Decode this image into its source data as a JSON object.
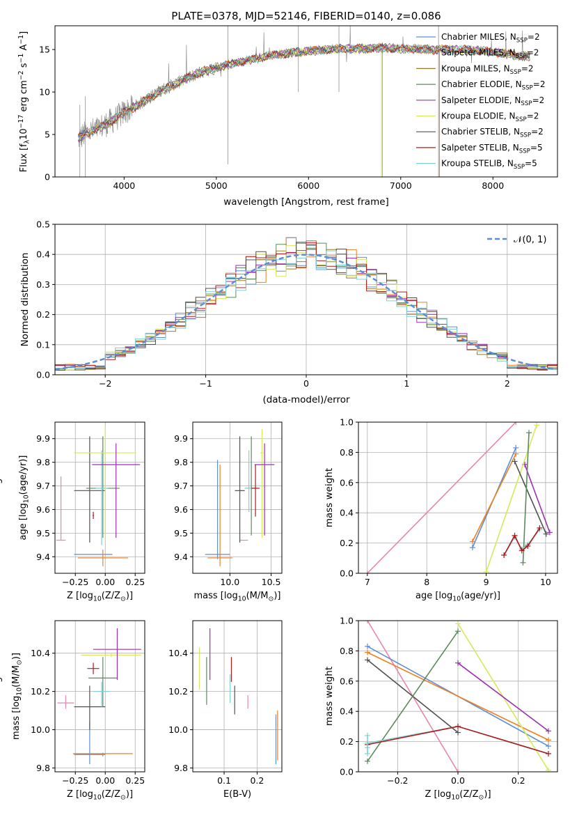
{
  "title": "PLATE=0378, MJD=52146, FIBERID=0140, z=0.086",
  "colors": {
    "chabrier_miles": "#5b8ed6",
    "salpeter_miles": "#f07f1e",
    "kroupa_miles": "#a07a2a",
    "chabrier_elodie": "#5a8a5a",
    "salpeter_elodie": "#9a30b0",
    "kroupa_elodie": "#d8e85a",
    "chabrier_stelib": "#505050",
    "salpeter_stelib": "#b01818",
    "kroupa_stelib": "#80d0d8",
    "pink": "#e884b0",
    "gray_data": "#808080",
    "grid": "#b0b0b0"
  },
  "chart_data": [
    {
      "id": "spectrum",
      "type": "line",
      "xlabel": "wavelength [Angstrom, rest frame]",
      "ylabel": "Flux [f",
      "ylabel_sub": "λ",
      "ylabel_rest": "10",
      "ylabel_exp": "−17",
      "ylabel_units": " erg cm",
      "ylabel_units_exp": "−2",
      "ylabel_units2": " s",
      "ylabel_units2_exp": "−1",
      "ylabel_units3": " A",
      "ylabel_units3_exp": "−1",
      "ylabel_end": "]",
      "xlim": [
        3250,
        8700
      ],
      "ylim": [
        0,
        17.8
      ],
      "xticks": [
        4000,
        5000,
        6000,
        7000,
        8000
      ],
      "yticks": [
        0,
        5,
        10,
        15
      ],
      "data_envelope": {
        "x": [
          3500,
          3600,
          3700,
          3800,
          3900,
          4000,
          4200,
          4400,
          4600,
          4800,
          5000,
          5200,
          5400,
          5600,
          5800,
          6000,
          6200,
          6400,
          6600,
          6800,
          7000,
          7200,
          7400,
          7600,
          7800,
          8000,
          8200,
          8400
        ],
        "y": [
          4.5,
          5.2,
          5.6,
          6.2,
          6.8,
          7.6,
          8.8,
          10.2,
          11.2,
          12.2,
          12.9,
          13.4,
          13.9,
          14.3,
          14.6,
          14.8,
          15.0,
          15.1,
          15.1,
          15.2,
          15.1,
          15.1,
          15.0,
          15.0,
          14.9,
          14.7,
          14.4,
          14.1
        ]
      },
      "legend": [
        {
          "name": "Chabrier MILES, N",
          "sub": "SSP",
          "val": "=2",
          "color": "#5b8ed6"
        },
        {
          "name": "Salpeter MILES, N",
          "sub": "SSP",
          "val": "=2",
          "color": "#f07f1e"
        },
        {
          "name": "Kroupa MILES, N",
          "sub": "SSP",
          "val": "=2",
          "color": "#a07a2a"
        },
        {
          "name": "Chabrier ELODIE, N",
          "sub": "SSP",
          "val": "=2",
          "color": "#5a8a5a"
        },
        {
          "name": "Salpeter ELODIE, N",
          "sub": "SSP",
          "val": "=2",
          "color": "#9a30b0"
        },
        {
          "name": "Kroupa ELODIE, N",
          "sub": "SSP",
          "val": "=2",
          "color": "#d8e85a"
        },
        {
          "name": "Chabrier STELIB, N",
          "sub": "SSP",
          "val": "=2",
          "color": "#505050"
        },
        {
          "name": "Salpeter STELIB, N",
          "sub": "SSP",
          "val": "=5",
          "color": "#b01818"
        },
        {
          "name": "Kroupa STELIB, N",
          "sub": "SSP",
          "val": "=5",
          "color": "#80d0d8"
        }
      ]
    },
    {
      "id": "histogram",
      "type": "line",
      "xlabel": "(data-model)/error",
      "ylabel": "Normed distribution",
      "xlim": [
        -2.5,
        2.5
      ],
      "ylim": [
        0,
        0.5
      ],
      "xticks": [
        -2,
        -1,
        0,
        1,
        2
      ],
      "yticks": [
        0.0,
        0.1,
        0.2,
        0.3,
        0.4,
        0.5
      ],
      "legend": "𝒩(0, 1)",
      "gaussian": {
        "mu": 0,
        "sigma": 1
      }
    },
    {
      "id": "age_vs_Z",
      "type": "scatter",
      "xlabel": "Z [log",
      "xlabel_sub": "10",
      "xlabel_rest": "(Z/Z",
      "xlabel_sub2": "⊙",
      "xlabel_end": ")]",
      "ylabel": "age  [log",
      "ylabel_sub": "10",
      "ylabel_rest": "(age/yr)]",
      "xlim": [
        -0.42,
        0.33
      ],
      "ylim": [
        9.33,
        9.97
      ],
      "xticks": [
        -0.25,
        0.0,
        0.25
      ],
      "xtick_labels": [
        "−0.25",
        "0.00",
        "0.25"
      ],
      "yticks": [
        9.4,
        9.5,
        9.6,
        9.7,
        9.8,
        9.9
      ],
      "points": [
        {
          "color": "#e884b0",
          "x": -0.37,
          "xlo": -0.36,
          "xhi": -0.33,
          "y": 9.47,
          "ylo": 9.47,
          "yhi": 9.74,
          "xerr": 0.04
        },
        {
          "color": "#5b8ed6",
          "x": -0.1,
          "xerr": 0.16,
          "y": 9.41,
          "ylo": 9.41,
          "yhi": 9.41
        },
        {
          "color": "#f07f1e",
          "x": -0.02,
          "xerr": 0.21,
          "y": 9.395,
          "ylo": 9.36,
          "yhi": 9.43
        },
        {
          "color": "#505050",
          "x": -0.13,
          "xerr": 0.13,
          "y": 9.68,
          "ylo": 9.46,
          "yhi": 9.91
        },
        {
          "color": "#5a8a5a",
          "x": -0.02,
          "xerr": 0.14,
          "y": 9.69,
          "ylo": 9.48,
          "yhi": 9.91
        },
        {
          "color": "#80d0d8",
          "x": -0.03,
          "xerr": 0.05,
          "y": 9.69,
          "ylo": 9.45,
          "yhi": 9.85
        },
        {
          "color": "#d8e85a",
          "x": 0.0,
          "xerr": 0.26,
          "y": 9.84,
          "ylo": 9.47,
          "yhi": 9.95
        },
        {
          "color": "#9a30b0",
          "x": 0.09,
          "xerr": 0.2,
          "y": 9.79,
          "ylo": 9.48,
          "yhi": 9.88
        },
        {
          "color": "#b01818",
          "x": -0.1,
          "xerr": 0.005,
          "y": 9.575,
          "ylo": 9.56,
          "yhi": 9.59
        }
      ]
    },
    {
      "id": "age_vs_mass",
      "type": "scatter",
      "xlabel": "mass [log",
      "xlabel_sub": "10",
      "xlabel_rest": "(M/M",
      "xlabel_sub2": "⊙",
      "xlabel_end": ")]",
      "xlim": [
        9.55,
        10.63
      ],
      "ylim": [
        9.33,
        9.97
      ],
      "xticks": [
        10.0,
        10.5
      ],
      "yticks": [
        9.4,
        9.5,
        9.6,
        9.7,
        9.8,
        9.9
      ],
      "points": [
        {
          "color": "#5b8ed6",
          "x": 9.85,
          "xerr": 0.0,
          "y": 9.41,
          "ylo": 9.39,
          "yhi": 9.81
        },
        {
          "color": "#f07f1e",
          "x": 9.88,
          "xerr": 0.0,
          "y": 9.4,
          "ylo": 9.36,
          "yhi": 9.79
        },
        {
          "color": "#5b8ed6",
          "x": 9.85,
          "xerr": 0.15,
          "y": 9.41,
          "ylo": 9.41,
          "yhi": 9.41
        },
        {
          "color": "#f07f1e",
          "x": 9.88,
          "xerr": 0.15,
          "y": 9.395,
          "ylo": 9.395,
          "yhi": 9.395
        },
        {
          "color": "#e884b0",
          "x": 10.17,
          "xerr": 0.05,
          "y": 9.47,
          "ylo": 9.47,
          "yhi": 9.47
        },
        {
          "color": "#505050",
          "x": 10.12,
          "xerr": 0.06,
          "y": 9.68,
          "ylo": 9.46,
          "yhi": 9.91
        },
        {
          "color": "#5a8a5a",
          "x": 10.26,
          "xerr": 0.08,
          "y": 9.69,
          "ylo": 9.49,
          "yhi": 9.91
        },
        {
          "color": "#80d0d8",
          "x": 10.23,
          "xerr": 0.05,
          "y": 9.69,
          "ylo": 9.59,
          "yhi": 9.85
        },
        {
          "color": "#d8e85a",
          "x": 10.39,
          "xerr": 0.02,
          "y": 9.84,
          "ylo": 9.48,
          "yhi": 9.94
        },
        {
          "color": "#9a30b0",
          "x": 10.42,
          "xerr": 0.12,
          "y": 9.79,
          "ylo": 9.49,
          "yhi": 9.88
        },
        {
          "color": "#b01818",
          "x": 10.31,
          "xerr": 0.05,
          "y": 9.69,
          "ylo": 9.57,
          "yhi": 9.79
        }
      ]
    },
    {
      "id": "massweight_vs_age",
      "type": "line",
      "xlabel": "age  [log",
      "xlabel_sub": "10",
      "xlabel_rest": "(age/yr)]",
      "ylabel": "mass weight",
      "xlim": [
        6.85,
        10.2
      ],
      "ylim": [
        0,
        1
      ],
      "xticks": [
        7,
        8,
        9,
        10
      ],
      "yticks": [
        0.0,
        0.2,
        0.4,
        0.6,
        0.8,
        1.0
      ],
      "series": [
        {
          "color": "#e884b0",
          "x": [
            7.0,
            9.5
          ],
          "y": [
            0.0,
            1.0
          ]
        },
        {
          "color": "#5b8ed6",
          "x": [
            8.77,
            9.5
          ],
          "y": [
            0.17,
            0.83
          ]
        },
        {
          "color": "#f07f1e",
          "x": [
            8.77,
            9.5
          ],
          "y": [
            0.21,
            0.79
          ]
        },
        {
          "color": "#9a30b0",
          "x": [
            9.65,
            10.07
          ],
          "y": [
            0.72,
            0.27
          ]
        },
        {
          "color": "#d8e85a",
          "x": [
            9.0,
            9.85
          ],
          "y": [
            0.01,
            0.98
          ]
        },
        {
          "color": "#505050",
          "x": [
            9.48,
            10.01
          ],
          "y": [
            0.74,
            0.26
          ]
        },
        {
          "color": "#5a8a5a",
          "x": [
            9.62,
            9.72
          ],
          "y": [
            0.07,
            0.93
          ]
        },
        {
          "color": "#80d0d8",
          "x": [
            9.3,
            9.48,
            9.6,
            9.7,
            9.9
          ],
          "y": [
            0.12,
            0.24,
            0.16,
            0.19,
            0.29
          ]
        },
        {
          "color": "#b01818",
          "x": [
            9.3,
            9.48,
            9.6,
            9.7,
            9.9
          ],
          "y": [
            0.12,
            0.25,
            0.15,
            0.18,
            0.3
          ]
        }
      ]
    },
    {
      "id": "mass_vs_Z",
      "type": "scatter",
      "xlabel": "Z [log",
      "xlabel_sub": "10",
      "xlabel_rest": "(Z/Z",
      "xlabel_sub2": "⊙",
      "xlabel_end": ")]",
      "ylabel": "mass [log",
      "ylabel_sub": "10",
      "ylabel_rest": "(M/M",
      "ylabel_sub2": "⊙",
      "ylabel_end": ")]",
      "xlim": [
        -0.42,
        0.33
      ],
      "ylim": [
        9.78,
        10.57
      ],
      "xticks": [
        -0.25,
        0.0,
        0.25
      ],
      "xtick_labels": [
        "−0.25",
        "0.00",
        "0.25"
      ],
      "yticks": [
        9.8,
        10.0,
        10.2,
        10.4
      ],
      "points": [
        {
          "color": "#e884b0",
          "x": -0.33,
          "xerr": 0.07,
          "y": 10.14,
          "ylo": 10.11,
          "yhi": 10.18
        },
        {
          "color": "#5b8ed6",
          "x": -0.13,
          "xerr": 0.13,
          "y": 9.87,
          "ylo": 9.82,
          "yhi": 10.04
        },
        {
          "color": "#f07f1e",
          "x": -0.02,
          "xerr": 0.25,
          "y": 9.875,
          "ylo": 9.86,
          "yhi": 9.88
        },
        {
          "color": "#505050",
          "x": -0.13,
          "xerr": 0.13,
          "y": 10.12,
          "ylo": 10.0,
          "yhi": 10.23
        },
        {
          "color": "#5a8a5a",
          "x": -0.02,
          "xerr": 0.12,
          "y": 10.27,
          "ylo": 10.12,
          "yhi": 10.38
        },
        {
          "color": "#80d0d8",
          "x": -0.03,
          "xerr": 0.07,
          "y": 10.2,
          "ylo": 10.12,
          "yhi": 10.25
        },
        {
          "color": "#d8e85a",
          "x": 0.05,
          "xerr": 0.25,
          "y": 10.39,
          "ylo": 10.38,
          "yhi": 10.4
        },
        {
          "color": "#9a30b0",
          "x": 0.1,
          "xerr": 0.2,
          "y": 10.42,
          "ylo": 10.26,
          "yhi": 10.53
        },
        {
          "color": "#b01818",
          "x": -0.1,
          "xerr": 0.05,
          "y": 10.32,
          "ylo": 10.29,
          "yhi": 10.35
        }
      ]
    },
    {
      "id": "mass_vs_ebv",
      "type": "scatter",
      "xlabel": "E(B-V)",
      "xlim": [
        0.005,
        0.275
      ],
      "ylim": [
        9.78,
        10.57
      ],
      "xticks": [
        0.1,
        0.2
      ],
      "yticks": [
        9.8,
        10.0,
        10.2,
        10.4
      ],
      "points": [
        {
          "color": "#d8e85a",
          "x": 0.025,
          "xerr": 0.0,
          "y": 10.39,
          "ylo": 10.21,
          "yhi": 10.43
        },
        {
          "color": "#5a8a5a",
          "x": 0.047,
          "xerr": 0.0,
          "y": 10.27,
          "ylo": 10.13,
          "yhi": 10.38
        },
        {
          "color": "#9a30b0",
          "x": 0.057,
          "xerr": 0.0,
          "y": 10.42,
          "ylo": 10.26,
          "yhi": 10.53
        },
        {
          "color": "#b01818",
          "x": 0.122,
          "xerr": 0.0,
          "y": 10.32,
          "ylo": 10.25,
          "yhi": 10.38
        },
        {
          "color": "#80d0d8",
          "x": 0.118,
          "xerr": 0.0,
          "y": 10.2,
          "ylo": 10.14,
          "yhi": 10.29
        },
        {
          "color": "#505050",
          "x": 0.132,
          "xerr": 0.0,
          "y": 10.12,
          "ylo": 10.08,
          "yhi": 10.23
        },
        {
          "color": "#e884b0",
          "x": 0.172,
          "xerr": 0.0,
          "y": 10.14,
          "ylo": 10.11,
          "yhi": 10.18
        },
        {
          "color": "#5b8ed6",
          "x": 0.257,
          "xerr": 0.0,
          "y": 9.87,
          "ylo": 9.82,
          "yhi": 10.08
        },
        {
          "color": "#f07f1e",
          "x": 0.262,
          "xerr": 0.0,
          "y": 9.875,
          "ylo": 9.84,
          "yhi": 10.1
        }
      ]
    },
    {
      "id": "massweight_vs_Z",
      "type": "line",
      "xlabel": "Z [log",
      "xlabel_sub": "10",
      "xlabel_rest": "(Z/Z",
      "xlabel_sub2": "⊙",
      "xlabel_end": ")]",
      "ylabel": "mass weight",
      "xlim": [
        -0.33,
        0.33
      ],
      "ylim": [
        0,
        1
      ],
      "xticks": [
        -0.2,
        0.0,
        0.2
      ],
      "xtick_labels": [
        "−0.2",
        "0.0",
        "0.2"
      ],
      "yticks": [
        0.0,
        0.2,
        0.4,
        0.6,
        0.8,
        1.0
      ],
      "series": [
        {
          "color": "#e884b0",
          "x": [
            -0.3,
            0.0
          ],
          "y": [
            1.0,
            0.0
          ]
        },
        {
          "color": "#5b8ed6",
          "x": [
            -0.3,
            0.3
          ],
          "y": [
            0.83,
            0.17
          ]
        },
        {
          "color": "#f07f1e",
          "x": [
            -0.3,
            0.3
          ],
          "y": [
            0.79,
            0.21
          ]
        },
        {
          "color": "#505050",
          "x": [
            -0.3,
            0.0
          ],
          "y": [
            0.74,
            0.26
          ]
        },
        {
          "color": "#5a8a5a",
          "x": [
            -0.3,
            0.0
          ],
          "y": [
            0.07,
            0.93
          ]
        },
        {
          "color": "#d8e85a",
          "x": [
            0.0,
            0.3
          ],
          "y": [
            0.98,
            0.01
          ]
        },
        {
          "color": "#9a30b0",
          "x": [
            0.0,
            0.3
          ],
          "y": [
            0.72,
            0.27
          ]
        },
        {
          "color": "#80d0d8",
          "x": [
            -0.3,
            0.0,
            0.3
          ],
          "y": [
            0.19,
            0.3,
            0.12
          ]
        },
        {
          "color": "#b01818",
          "x": [
            -0.3,
            0.0,
            0.3
          ],
          "y": [
            0.18,
            0.3,
            0.12
          ]
        },
        {
          "color": "#80d0d8",
          "x": [
            -0.3,
            -0.3,
            -0.3
          ],
          "y": [
            0.16,
            0.24,
            0.12
          ]
        }
      ]
    }
  ]
}
